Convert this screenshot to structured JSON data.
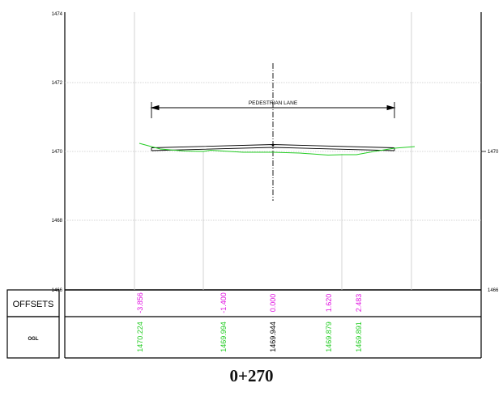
{
  "elevation_axis_left": [
    "1474",
    "1472",
    "1470",
    "1468",
    "1466"
  ],
  "elevation_axis_right": [
    "1470",
    "1466"
  ],
  "lane_label": "PEDESTRIAN LANE",
  "band_labels": {
    "offsets": "OFFSETS",
    "ogl": "OGL"
  },
  "offsets": [
    {
      "offset": "-3.856",
      "ogl": "1470.224",
      "ogl_color": "#22cc22"
    },
    {
      "offset": "-1.400",
      "ogl": "1469.994",
      "ogl_color": "#22cc22"
    },
    {
      "offset": "0.000",
      "ogl": "1469.944",
      "ogl_color": "#000000"
    },
    {
      "offset": "1.620",
      "ogl": "1469.879",
      "ogl_color": "#22cc22"
    },
    {
      "offset": "2.483",
      "ogl": "1469.891",
      "ogl_color": "#22cc22"
    }
  ],
  "station": "0+270",
  "colors": {
    "offset_text": "#e010e0",
    "ground_line": "#22cc22",
    "grid": "#c8c8c8",
    "ink": "#000000"
  }
}
